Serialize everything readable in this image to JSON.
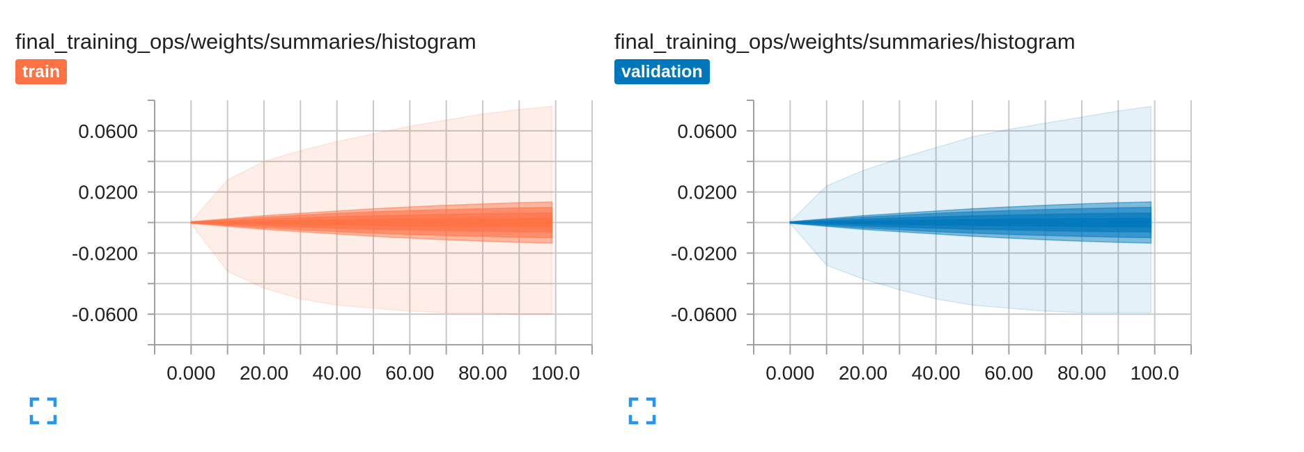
{
  "cards": [
    {
      "title": "final_training_ops/weights/summaries/histogram",
      "run": {
        "label": "train",
        "color": "#ff7043"
      },
      "expand_icon": "fullscreen-icon"
    },
    {
      "title": "final_training_ops/weights/summaries/histogram",
      "run": {
        "label": "validation",
        "color": "#0077bb"
      },
      "expand_icon": "fullscreen-icon"
    }
  ],
  "ui": {
    "expand_icon_color": "#2196f3",
    "grid_color": "#c8c8c8",
    "axis_color": "#a0a0a0"
  },
  "chart_data": [
    {
      "type": "area",
      "title": "final_training_ops/weights/summaries/histogram",
      "series_label": "train",
      "color": "#ff7043",
      "x_tick_labels": [
        "0.000",
        "20.00",
        "40.00",
        "60.00",
        "80.00",
        "100.0"
      ],
      "y_tick_labels": [
        "0.0600",
        "0.0200",
        "-0.0200",
        "-0.0600"
      ],
      "xlim": [
        -10,
        110
      ],
      "ylim": [
        -0.08,
        0.08
      ],
      "grid": true,
      "x": [
        0,
        10,
        20,
        30,
        40,
        50,
        60,
        70,
        80,
        90,
        99
      ],
      "bands": [
        {
          "opacity": 0.12,
          "lower": [
            -0.0005,
            -0.032,
            -0.043,
            -0.05,
            -0.054,
            -0.056,
            -0.058,
            -0.059,
            -0.059,
            -0.06,
            -0.06
          ],
          "upper": [
            0.0005,
            0.028,
            0.04,
            0.047,
            0.053,
            0.058,
            0.063,
            0.067,
            0.071,
            0.074,
            0.076
          ]
        },
        {
          "opacity": 0.45,
          "lower": [
            -0.0005,
            -0.0025,
            -0.0045,
            -0.006,
            -0.0075,
            -0.009,
            -0.0102,
            -0.0113,
            -0.0122,
            -0.013,
            -0.0135
          ],
          "upper": [
            0.0005,
            0.0025,
            0.0045,
            0.006,
            0.0075,
            0.009,
            0.0102,
            0.0113,
            0.0122,
            0.013,
            0.0135
          ]
        },
        {
          "opacity": 0.55,
          "lower": [
            -0.0004,
            -0.002,
            -0.0035,
            -0.0048,
            -0.006,
            -0.007,
            -0.0078,
            -0.0085,
            -0.0091,
            -0.0096,
            -0.01
          ],
          "upper": [
            0.0004,
            0.002,
            0.0035,
            0.0048,
            0.006,
            0.007,
            0.0078,
            0.0085,
            0.0091,
            0.0096,
            0.01
          ]
        },
        {
          "opacity": 0.65,
          "lower": [
            -0.0003,
            -0.0013,
            -0.0023,
            -0.0031,
            -0.0038,
            -0.0044,
            -0.0049,
            -0.0054,
            -0.0058,
            -0.0061,
            -0.0063
          ],
          "upper": [
            0.0003,
            0.0013,
            0.0023,
            0.0031,
            0.0038,
            0.0044,
            0.0049,
            0.0054,
            0.0058,
            0.0061,
            0.0063
          ]
        },
        {
          "opacity": 0.75,
          "lower": [
            -0.0002,
            -0.0006,
            -0.001,
            -0.0014,
            -0.0017,
            -0.002,
            -0.0022,
            -0.0024,
            -0.0026,
            -0.0027,
            -0.0028
          ],
          "upper": [
            0.0002,
            0.0006,
            0.001,
            0.0014,
            0.0017,
            0.002,
            0.0022,
            0.0024,
            0.0026,
            0.0027,
            0.0028
          ]
        }
      ]
    },
    {
      "type": "area",
      "title": "final_training_ops/weights/summaries/histogram",
      "series_label": "validation",
      "color": "#0077bb",
      "x_tick_labels": [
        "0.000",
        "20.00",
        "40.00",
        "60.00",
        "80.00",
        "100.0"
      ],
      "y_tick_labels": [
        "0.0600",
        "0.0200",
        "-0.0200",
        "-0.0600"
      ],
      "xlim": [
        -10,
        110
      ],
      "ylim": [
        -0.08,
        0.08
      ],
      "grid": true,
      "x": [
        0,
        10,
        20,
        30,
        40,
        50,
        60,
        70,
        80,
        90,
        99
      ],
      "bands": [
        {
          "opacity": 0.1,
          "lower": [
            -0.0005,
            -0.028,
            -0.037,
            -0.044,
            -0.05,
            -0.054,
            -0.056,
            -0.058,
            -0.059,
            -0.059,
            -0.059
          ],
          "upper": [
            0.0005,
            0.024,
            0.034,
            0.042,
            0.049,
            0.056,
            0.061,
            0.065,
            0.069,
            0.073,
            0.076
          ]
        },
        {
          "opacity": 0.45,
          "lower": [
            -0.0005,
            -0.0025,
            -0.0045,
            -0.006,
            -0.0075,
            -0.009,
            -0.0102,
            -0.0113,
            -0.0122,
            -0.013,
            -0.0135
          ],
          "upper": [
            0.0005,
            0.0025,
            0.0045,
            0.006,
            0.0075,
            0.009,
            0.0102,
            0.0113,
            0.0122,
            0.013,
            0.0135
          ]
        },
        {
          "opacity": 0.55,
          "lower": [
            -0.0004,
            -0.002,
            -0.0035,
            -0.0048,
            -0.006,
            -0.007,
            -0.0078,
            -0.0085,
            -0.0091,
            -0.0096,
            -0.01
          ],
          "upper": [
            0.0004,
            0.002,
            0.0035,
            0.0048,
            0.006,
            0.007,
            0.0078,
            0.0085,
            0.0091,
            0.0096,
            0.01
          ]
        },
        {
          "opacity": 0.65,
          "lower": [
            -0.0003,
            -0.0013,
            -0.0023,
            -0.0031,
            -0.0038,
            -0.0044,
            -0.0049,
            -0.0054,
            -0.0058,
            -0.0061,
            -0.0063
          ],
          "upper": [
            0.0003,
            0.0013,
            0.0023,
            0.0031,
            0.0038,
            0.0044,
            0.0049,
            0.0054,
            0.0058,
            0.0061,
            0.0063
          ]
        },
        {
          "opacity": 0.75,
          "lower": [
            -0.0002,
            -0.0006,
            -0.001,
            -0.0014,
            -0.0017,
            -0.002,
            -0.0022,
            -0.0024,
            -0.0026,
            -0.0027,
            -0.0028
          ],
          "upper": [
            0.0002,
            0.0006,
            0.001,
            0.0014,
            0.0017,
            0.002,
            0.0022,
            0.0024,
            0.0026,
            0.0027,
            0.0028
          ]
        }
      ]
    }
  ]
}
